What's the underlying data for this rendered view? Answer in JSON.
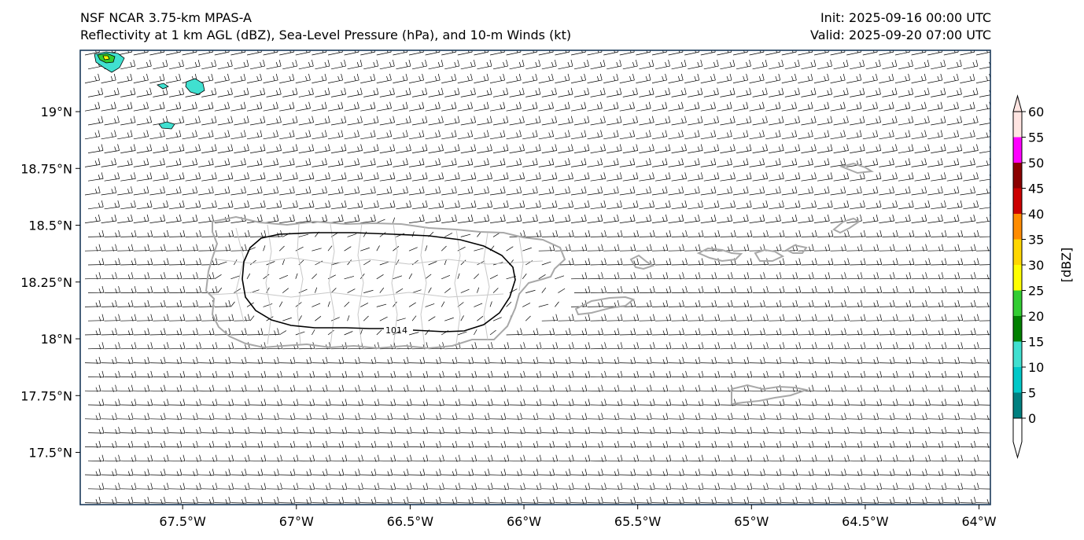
{
  "title": {
    "left_line1": "NSF NCAR 3.75-km MPAS-A",
    "left_line2": "Reflectivity at 1 km AGL (dBZ), Sea-Level Pressure (hPa), and 10-m Winds (kt)",
    "right_line1": "Init: 2025-09-16 00:00 UTC",
    "right_line2": "Valid: 2025-09-20 07:00 UTC"
  },
  "map": {
    "lon_range": [
      -67.95,
      -63.95
    ],
    "lat_range": [
      17.27,
      19.27
    ],
    "x_ticks": [
      {
        "value": -67.5,
        "label": "67.5°W"
      },
      {
        "value": -67.0,
        "label": "67°W"
      },
      {
        "value": -66.5,
        "label": "66.5°W"
      },
      {
        "value": -66.0,
        "label": "66°W"
      },
      {
        "value": -65.5,
        "label": "65.5°W"
      },
      {
        "value": -65.0,
        "label": "65°W"
      },
      {
        "value": -64.5,
        "label": "64.5°W"
      },
      {
        "value": -64.0,
        "label": "64°W"
      }
    ],
    "y_ticks": [
      {
        "value": 19.0,
        "label": "19°N"
      },
      {
        "value": 18.75,
        "label": "18.75°N"
      },
      {
        "value": 18.5,
        "label": "18.5°N"
      },
      {
        "value": 18.25,
        "label": "18.25°N"
      },
      {
        "value": 18.0,
        "label": "18°N"
      },
      {
        "value": 17.75,
        "label": "17.75°N"
      },
      {
        "value": 17.5,
        "label": "17.5°N"
      }
    ],
    "isobar_label": "1014",
    "isobar_value_hpa": 1014
  },
  "colorbar": {
    "label": "[dBZ]",
    "levels": [
      0,
      5,
      10,
      15,
      20,
      25,
      30,
      35,
      40,
      45,
      50,
      55,
      60
    ],
    "colors": [
      "#008080",
      "#00c8c8",
      "#40e0d0",
      "#008000",
      "#32cd32",
      "#ffff00",
      "#ffd700",
      "#ff8c00",
      "#cc0000",
      "#8b0000",
      "#ff00ff",
      "#ffe4e1"
    ],
    "under_color": "#ffffff",
    "over_color": "#ffe4e1"
  },
  "colors": {
    "ocean": "#ffffff",
    "coast": "#a0a0a0",
    "barb": "#000000",
    "frame": "#1a3a5a"
  }
}
